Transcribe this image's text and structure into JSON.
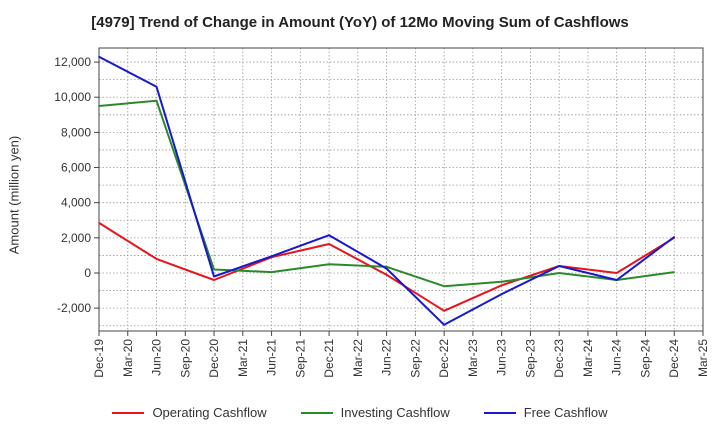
{
  "chart_data": {
    "type": "line",
    "title": "[4979]  Trend of Change in Amount (YoY) of 12Mo Moving Sum of Cashflows",
    "xlabel": "",
    "ylabel": "Amount (million yen)",
    "ylim": [
      -3300,
      12800
    ],
    "yticks": [
      -2000,
      0,
      2000,
      4000,
      6000,
      8000,
      10000,
      12000
    ],
    "ytick_labels": [
      "-2,000",
      "0",
      "2,000",
      "4,000",
      "6,000",
      "8,000",
      "10,000",
      "12,000"
    ],
    "categories": [
      "Dec-19",
      "Mar-20",
      "Jun-20",
      "Sep-20",
      "Dec-20",
      "Mar-21",
      "Jun-21",
      "Sep-21",
      "Dec-21",
      "Mar-22",
      "Jun-22",
      "Sep-22",
      "Dec-22",
      "Mar-23",
      "Jun-23",
      "Sep-23",
      "Dec-23",
      "Mar-24",
      "Jun-24",
      "Sep-24",
      "Dec-24",
      "Mar-25"
    ],
    "series": [
      {
        "name": "Operating Cashflow",
        "color": "#e8141c",
        "values": [
          2850,
          null,
          800,
          null,
          -400,
          null,
          900,
          null,
          1650,
          null,
          -100,
          null,
          -2150,
          null,
          -700,
          null,
          400,
          null,
          0,
          null,
          2000,
          null
        ]
      },
      {
        "name": "Investing Cashflow",
        "color": "#2a8a2a",
        "values": [
          9500,
          null,
          9800,
          null,
          200,
          null,
          50,
          null,
          500,
          null,
          350,
          null,
          -750,
          null,
          -500,
          null,
          0,
          null,
          -400,
          null,
          50,
          null
        ]
      },
      {
        "name": "Free Cashflow",
        "color": "#1818cc",
        "values": [
          12300,
          null,
          10600,
          null,
          -200,
          null,
          950,
          null,
          2150,
          null,
          250,
          null,
          -2950,
          null,
          -1200,
          null,
          400,
          null,
          -400,
          null,
          2050,
          null
        ]
      }
    ],
    "legend_position": "bottom",
    "grid": true
  }
}
